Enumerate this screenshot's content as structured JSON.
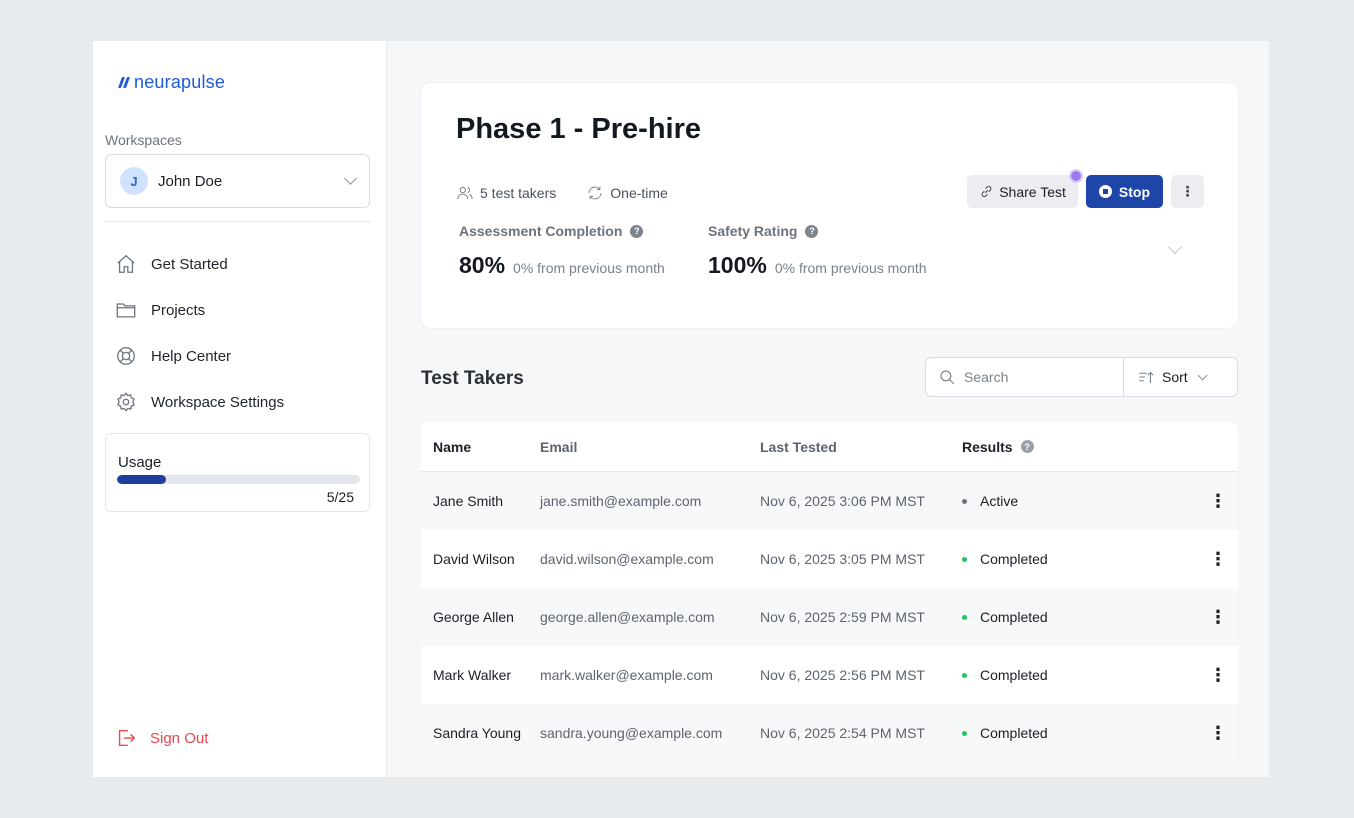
{
  "brand": {
    "name": "neurapulse",
    "color": "#1f5bd8"
  },
  "sidebar": {
    "workspaces_label": "Workspaces",
    "workspace": {
      "initial": "J",
      "name": "John Doe"
    },
    "nav": [
      {
        "label": "Get Started",
        "icon": "home-icon"
      },
      {
        "label": "Projects",
        "icon": "folder-icon"
      },
      {
        "label": "Help Center",
        "icon": "lifebuoy-icon"
      },
      {
        "label": "Workspace Settings",
        "icon": "gear-icon"
      }
    ],
    "usage": {
      "title": "Usage",
      "used": 5,
      "total": 25,
      "count_label": "5/25"
    },
    "sign_out": "Sign Out"
  },
  "header": {
    "title": "Phase 1 - Pre-hire",
    "test_takers": "5 test takers",
    "frequency": "One-time",
    "share_label": "Share Test",
    "stop_label": "Stop",
    "more_label": "⋮"
  },
  "metrics": [
    {
      "label": "Assessment Completion",
      "value": "80%",
      "delta": "0% from previous month"
    },
    {
      "label": "Safety Rating",
      "value": "100%",
      "delta": "0% from previous month"
    }
  ],
  "test_takers": {
    "title": "Test Takers",
    "search_placeholder": "Search",
    "sort_label": "Sort",
    "columns": [
      "Name",
      "Email",
      "Last Tested",
      "Results"
    ],
    "rows": [
      {
        "name": "Jane Smith",
        "email": "jane.smith@example.com",
        "last_tested": "Nov 6, 2025 3:06 PM MST",
        "result": "Active",
        "status_color": "#6b7280"
      },
      {
        "name": "David Wilson",
        "email": "david.wilson@example.com",
        "last_tested": "Nov 6, 2025 3:05 PM MST",
        "result": "Completed",
        "status_color": "#22c55e"
      },
      {
        "name": "George Allen",
        "email": "george.allen@example.com",
        "last_tested": "Nov 6, 2025 2:59 PM MST",
        "result": "Completed",
        "status_color": "#22c55e"
      },
      {
        "name": "Mark Walker",
        "email": "mark.walker@example.com",
        "last_tested": "Nov 6, 2025 2:56 PM MST",
        "result": "Completed",
        "status_color": "#22c55e"
      },
      {
        "name": "Sandra Young",
        "email": "sandra.young@example.com",
        "last_tested": "Nov 6, 2025 2:54 PM MST",
        "result": "Completed",
        "status_color": "#22c55e"
      }
    ]
  },
  "colors": {
    "accent": "#1d46a8",
    "danger": "#e5484d",
    "success": "#22c55e"
  }
}
